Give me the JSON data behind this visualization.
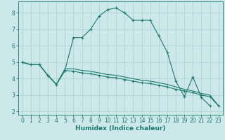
{
  "xlabel": "Humidex (Indice chaleur)",
  "background_color": "#cce8e8",
  "line_color": "#1a7a6e",
  "grid_color": "#afd4d4",
  "xlim": [
    -0.5,
    23.5
  ],
  "ylim": [
    1.8,
    8.7
  ],
  "xticks": [
    0,
    1,
    2,
    3,
    4,
    5,
    6,
    7,
    8,
    9,
    10,
    11,
    12,
    13,
    14,
    15,
    16,
    17,
    18,
    19,
    20,
    21,
    22,
    23
  ],
  "yticks": [
    2,
    3,
    4,
    5,
    6,
    7,
    8
  ],
  "curve1_x": [
    0,
    1,
    2,
    3,
    4,
    5,
    6,
    7,
    8,
    9,
    10,
    11,
    12,
    13,
    14,
    15,
    16,
    17,
    18,
    19,
    20,
    21,
    22
  ],
  "curve1_y": [
    5.0,
    4.85,
    4.85,
    4.2,
    3.65,
    4.5,
    6.5,
    6.5,
    7.0,
    7.8,
    8.2,
    8.3,
    8.0,
    7.55,
    7.55,
    7.55,
    6.6,
    5.6,
    3.85,
    2.9,
    4.1,
    2.85,
    2.35
  ],
  "curve2_x": [
    0,
    1,
    2,
    3,
    4,
    5,
    6,
    7,
    8,
    9,
    10,
    11,
    12,
    13,
    14,
    15,
    16,
    17,
    18,
    19,
    20,
    21,
    22,
    23
  ],
  "curve2_y": [
    5.0,
    4.85,
    4.85,
    4.2,
    3.65,
    4.5,
    4.45,
    4.35,
    4.3,
    4.2,
    4.1,
    4.05,
    3.95,
    3.85,
    3.75,
    3.7,
    3.6,
    3.5,
    3.35,
    3.25,
    3.15,
    3.0,
    2.9,
    2.35
  ],
  "curve3_x": [
    0,
    1,
    2,
    3,
    4,
    5,
    6,
    7,
    8,
    9,
    10,
    11,
    12,
    13,
    14,
    15,
    16,
    17,
    18,
    19,
    20,
    21,
    22,
    23
  ],
  "curve3_y": [
    5.0,
    4.85,
    4.85,
    4.2,
    3.65,
    4.6,
    4.6,
    4.5,
    4.45,
    4.35,
    4.25,
    4.2,
    4.1,
    4.0,
    3.9,
    3.85,
    3.75,
    3.65,
    3.5,
    3.35,
    3.25,
    3.1,
    3.0,
    2.35
  ]
}
